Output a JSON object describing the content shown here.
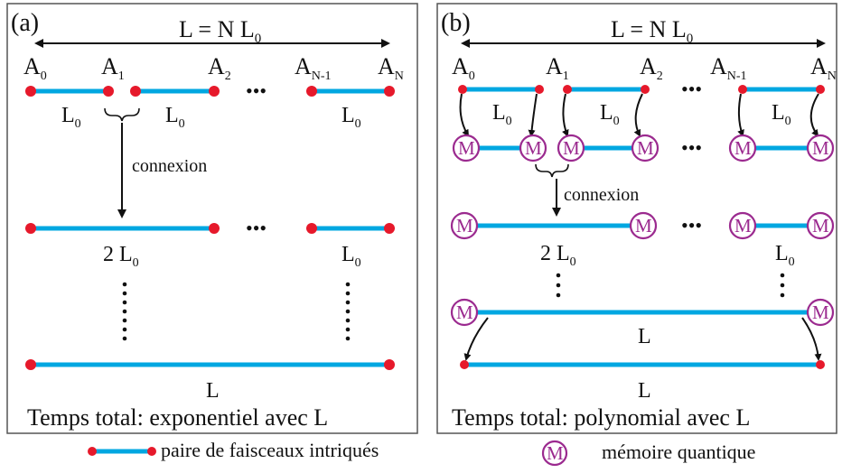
{
  "panel_a": {
    "label": "(a)",
    "length_eq": "L = N L",
    "length_eq_sub": "0",
    "nodes": [
      {
        "base": "A",
        "sub": "0"
      },
      {
        "base": "A",
        "sub": "1"
      },
      {
        "base": "A",
        "sub": "2"
      },
      {
        "base": "A",
        "sub": "N-1"
      },
      {
        "base": "A",
        "sub": "N"
      }
    ],
    "ellipsis": "•••",
    "seg_label": "L",
    "seg_sub": "0",
    "connexion": "connexion",
    "double_label": "2 L",
    "double_sub": "0",
    "final_label": "L",
    "footer": "Temps total: exponentiel avec L"
  },
  "panel_b": {
    "label": "(b)",
    "length_eq": "L = N L",
    "length_eq_sub": "0",
    "nodes": [
      {
        "base": "A",
        "sub": "0"
      },
      {
        "base": "A",
        "sub": "1"
      },
      {
        "base": "A",
        "sub": "2"
      },
      {
        "base": "A",
        "sub": "N-1"
      },
      {
        "base": "A",
        "sub": "N"
      }
    ],
    "ellipsis": "•••",
    "seg_label": "L",
    "seg_sub": "0",
    "memory_symbol": "M",
    "connexion": "connexion",
    "double_label": "2 L",
    "double_sub": "0",
    "final_label": "L",
    "final_label_2": "L",
    "footer": "Temps total: polynomial avec L"
  },
  "legend": {
    "pair_label": "paire de faisceaux intriqués",
    "memory_symbol": "M",
    "memory_label": "mémoire quantique"
  },
  "colors": {
    "beam": "#00a7e1",
    "node": "#e6192b",
    "memory": "#9b2a8f"
  }
}
